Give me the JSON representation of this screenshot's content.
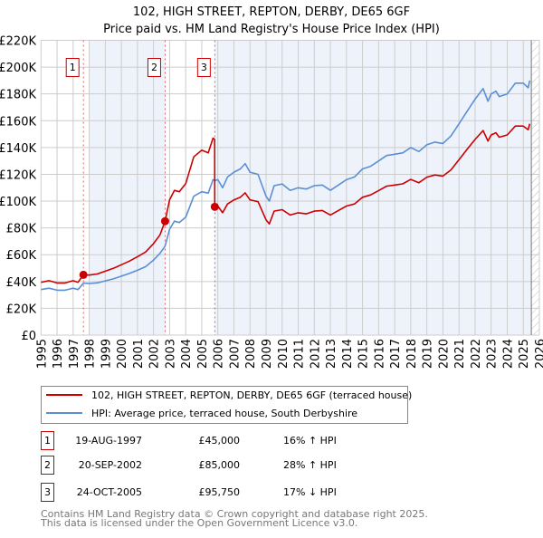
{
  "chart_data": {
    "type": "line",
    "title": "102, HIGH STREET, REPTON, DERBY, DE65 6GF",
    "subtitle": "Price paid vs. HM Land Registry's House Price Index (HPI)",
    "xlim": [
      1995,
      2026
    ],
    "ylim": [
      0,
      220000
    ],
    "x_ticks": [
      1995,
      1996,
      1997,
      1998,
      1999,
      2000,
      2001,
      2002,
      2003,
      2004,
      2005,
      2006,
      2007,
      2008,
      2009,
      2010,
      2011,
      2012,
      2013,
      2014,
      2015,
      2016,
      2017,
      2018,
      2019,
      2020,
      2021,
      2022,
      2023,
      2024,
      2025,
      2026
    ],
    "y_ticks": [
      {
        "value": 0,
        "label": "£0"
      },
      {
        "value": 20000,
        "label": "£20K"
      },
      {
        "value": 40000,
        "label": "£40K"
      },
      {
        "value": 60000,
        "label": "£60K"
      },
      {
        "value": 80000,
        "label": "£80K"
      },
      {
        "value": 100000,
        "label": "£100K"
      },
      {
        "value": 120000,
        "label": "£120K"
      },
      {
        "value": 140000,
        "label": "£140K"
      },
      {
        "value": 160000,
        "label": "£160K"
      },
      {
        "value": 180000,
        "label": "£180K"
      },
      {
        "value": 200000,
        "label": "£200K"
      },
      {
        "value": 220000,
        "label": "£220K"
      }
    ],
    "grid": true,
    "shaded_ranges": [
      [
        1998.0,
        2002.72
      ],
      [
        2005.81,
        2025.5
      ]
    ],
    "forecast_from": 2025.5,
    "series": [
      {
        "name": "102, HIGH STREET, REPTON, DERBY, DE65 6GF (terraced house)",
        "color": "#cc0000",
        "x": [
          1995.0,
          1995.5,
          1996.0,
          1996.5,
          1997.0,
          1997.3,
          1997.64,
          1998.0,
          1998.5,
          1999.0,
          1999.5,
          2000.0,
          2000.5,
          2001.0,
          2001.5,
          2002.0,
          2002.4,
          2002.72,
          2003.0,
          2003.3,
          2003.6,
          2004.0,
          2004.5,
          2005.0,
          2005.4,
          2005.7,
          2005.8,
          2005.81,
          2006.0,
          2006.3,
          2006.6,
          2007.0,
          2007.4,
          2007.7,
          2008.0,
          2008.5,
          2009.0,
          2009.2,
          2009.5,
          2010.0,
          2010.5,
          2011.0,
          2011.5,
          2012.0,
          2012.5,
          2013.0,
          2013.5,
          2014.0,
          2014.5,
          2015.0,
          2015.5,
          2016.0,
          2016.5,
          2017.0,
          2017.5,
          2018.0,
          2018.5,
          2019.0,
          2019.5,
          2020.0,
          2020.5,
          2021.0,
          2021.5,
          2022.0,
          2022.5,
          2022.8,
          2023.0,
          2023.3,
          2023.5,
          2024.0,
          2024.5,
          2025.0,
          2025.3,
          2025.4
        ],
        "y": [
          39400,
          40600,
          38900,
          38900,
          40600,
          39400,
          45000,
          44800,
          45600,
          47700,
          49800,
          52500,
          55200,
          58500,
          62000,
          68300,
          74800,
          85000,
          101000,
          108000,
          107000,
          113000,
          133000,
          138000,
          136000,
          147000,
          146000,
          95750,
          96300,
          91300,
          97900,
          100900,
          102900,
          106200,
          100900,
          99600,
          86000,
          83000,
          92500,
          93600,
          89600,
          91300,
          90500,
          92500,
          93000,
          89600,
          93000,
          96300,
          97900,
          102900,
          104600,
          107900,
          111200,
          112000,
          112900,
          116200,
          113700,
          117900,
          119500,
          118700,
          123300,
          130900,
          138600,
          146000,
          152700,
          144800,
          149400,
          151000,
          147700,
          149400,
          156000,
          156000,
          153200,
          157700
        ]
      },
      {
        "name": "HPI: Average price, terraced house, South Derbyshire",
        "color": "#5b8fd4",
        "x": [
          1995.0,
          1995.5,
          1996.0,
          1996.5,
          1997.0,
          1997.3,
          1997.64,
          1998.0,
          1998.5,
          1999.0,
          1999.5,
          2000.0,
          2000.5,
          2001.0,
          2001.5,
          2002.0,
          2002.4,
          2002.72,
          2003.0,
          2003.3,
          2003.6,
          2004.0,
          2004.5,
          2005.0,
          2005.4,
          2005.7,
          2005.81,
          2006.0,
          2006.3,
          2006.6,
          2007.0,
          2007.4,
          2007.7,
          2008.0,
          2008.5,
          2009.0,
          2009.2,
          2009.5,
          2010.0,
          2010.5,
          2011.0,
          2011.5,
          2012.0,
          2012.5,
          2013.0,
          2013.5,
          2014.0,
          2014.5,
          2015.0,
          2015.5,
          2016.0,
          2016.5,
          2017.0,
          2017.5,
          2018.0,
          2018.5,
          2019.0,
          2019.5,
          2020.0,
          2020.5,
          2021.0,
          2021.5,
          2022.0,
          2022.5,
          2022.8,
          2023.0,
          2023.3,
          2023.5,
          2024.0,
          2024.5,
          2025.0,
          2025.3,
          2025.4
        ],
        "y": [
          34000,
          35000,
          33500,
          33500,
          35000,
          34000,
          38800,
          38500,
          39000,
          40500,
          42000,
          44000,
          46000,
          48400,
          51000,
          56000,
          61000,
          66400,
          79000,
          85000,
          84000,
          88000,
          103600,
          107000,
          106000,
          116000,
          115400,
          116000,
          110000,
          118000,
          121600,
          124000,
          128000,
          121600,
          120000,
          103600,
          100000,
          111500,
          112800,
          108000,
          110000,
          109000,
          111500,
          112000,
          108000,
          112000,
          116000,
          118000,
          124000,
          126000,
          130000,
          134000,
          135000,
          136000,
          140000,
          137000,
          142000,
          144000,
          143000,
          148600,
          157700,
          167000,
          176000,
          184000,
          174500,
          180000,
          182000,
          178000,
          180000,
          188000,
          188000,
          184600,
          190000
        ]
      }
    ],
    "sales": [
      {
        "num": "1",
        "x": 1997.64,
        "price": 45000,
        "date": "19-AUG-1997",
        "price_label": "£45,000",
        "hpi_diff": "16% ↑ HPI"
      },
      {
        "num": "2",
        "x": 2002.72,
        "price": 85000,
        "date": "20-SEP-2002",
        "price_label": "£85,000",
        "hpi_diff": "28% ↑ HPI"
      },
      {
        "num": "3",
        "x": 2005.81,
        "price": 95750,
        "date": "24-OCT-2005",
        "price_label": "£95,750",
        "hpi_diff": "17% ↓ HPI"
      }
    ],
    "legend": {
      "placement": "bottom",
      "entries": [
        "102, HIGH STREET, REPTON, DERBY, DE65 6GF (terraced house)",
        "HPI: Average price, terraced house, South Derbyshire"
      ]
    }
  },
  "footer": {
    "line1": "Contains HM Land Registry data © Crown copyright and database right 2025.",
    "line2": "This data is licensed under the Open Government Licence v3.0."
  },
  "colors": {
    "shade": "#eef3fb",
    "sale_marker": "#cc0000",
    "grid": "#cccccc"
  }
}
